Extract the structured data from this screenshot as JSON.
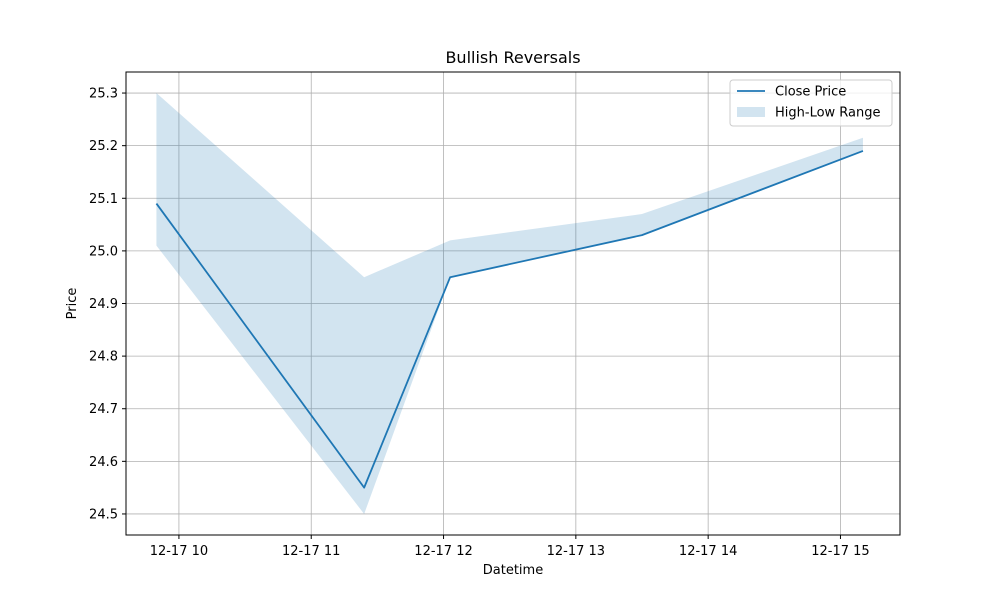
{
  "chart_data": {
    "type": "line",
    "title": "Bullish Reversals",
    "xlabel": "Datetime",
    "ylabel": "Price",
    "x_tick_labels": [
      "12-17 10",
      "12-17 11",
      "12-17 12",
      "12-17 13",
      "12-17 14",
      "12-17 15"
    ],
    "x_tick_hours": [
      10,
      11,
      12,
      13,
      14,
      15
    ],
    "y_ticks": [
      24.5,
      24.6,
      24.7,
      24.8,
      24.9,
      25.0,
      25.1,
      25.2,
      25.3
    ],
    "y_tick_labels": [
      "24.5",
      "24.6",
      "24.7",
      "24.8",
      "24.9",
      "25.0",
      "25.1",
      "25.2",
      "25.3"
    ],
    "xlim": [
      9.6,
      15.45
    ],
    "ylim": [
      24.46,
      25.34
    ],
    "grid": true,
    "legend_position": "top-right",
    "x": [
      "12-17 09:50",
      "12-17 11:24",
      "12-17 12:03",
      "12-17 13:30",
      "12-17 15:10"
    ],
    "x_hours": [
      9.83,
      11.4,
      12.05,
      13.5,
      15.17
    ],
    "series": [
      {
        "name": "Close Price",
        "kind": "line",
        "color": "#1f77b4",
        "values": [
          25.09,
          24.55,
          24.95,
          25.03,
          25.19
        ]
      },
      {
        "name": "High-Low Range",
        "kind": "band",
        "color": "#1f77b4",
        "opacity": 0.2,
        "high": [
          25.3,
          24.95,
          25.02,
          25.07,
          25.215
        ],
        "low": [
          25.01,
          24.5,
          24.95,
          25.03,
          25.19
        ]
      }
    ]
  }
}
